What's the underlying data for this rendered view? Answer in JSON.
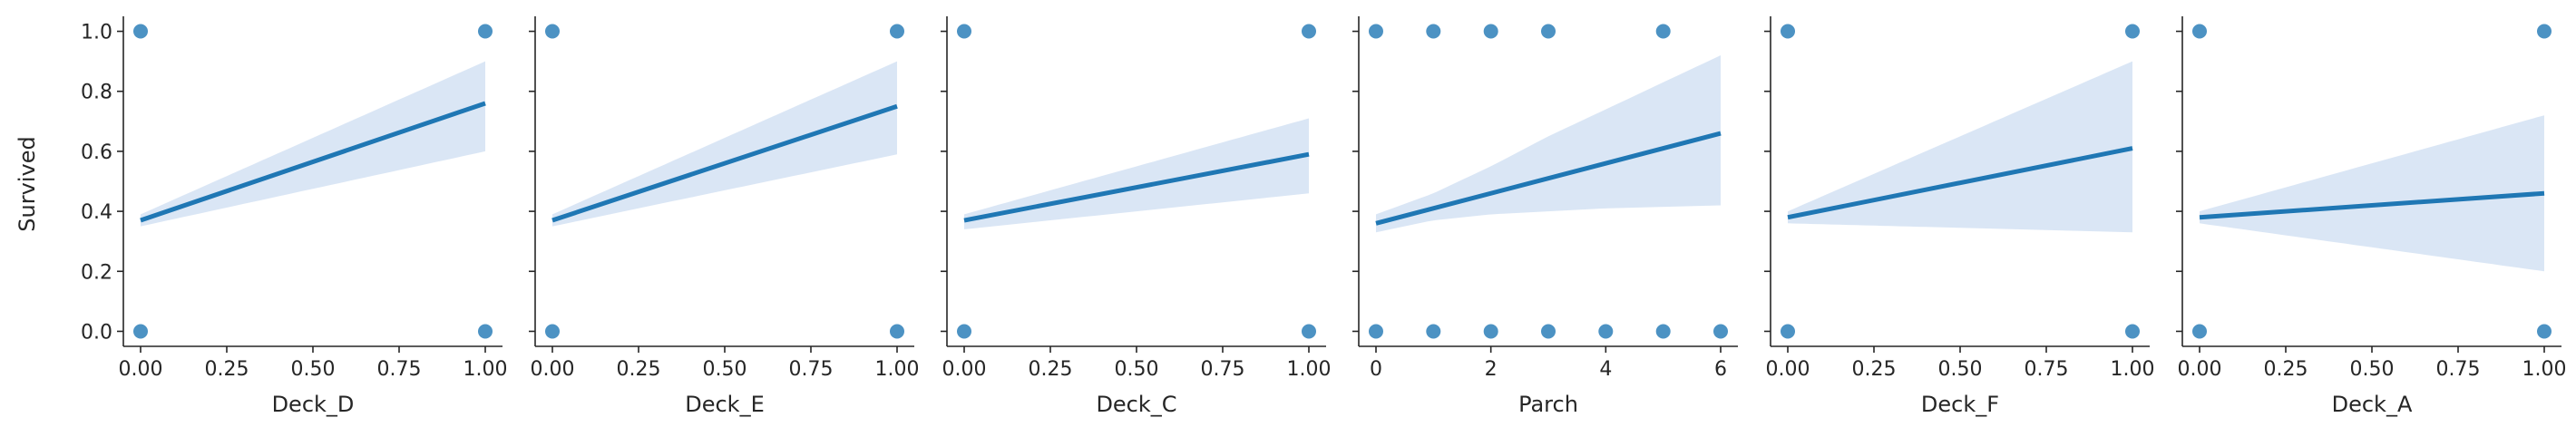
{
  "figure": {
    "shared_ylabel": "Survived",
    "y_ticks": [
      0.0,
      0.2,
      0.4,
      0.6,
      0.8,
      1.0
    ],
    "y_tick_labels": [
      "0.0",
      "0.2",
      "0.4",
      "0.6",
      "0.8",
      "1.0"
    ],
    "ylim": [
      -0.05,
      1.05
    ],
    "colors": {
      "points": "#1f77b4",
      "line": "#1f77b4",
      "ci_band": "#aec7e8",
      "axis": "#262626"
    }
  },
  "chart_data": [
    {
      "type": "scatter",
      "xlabel": "Deck_D",
      "ylabel": "Survived",
      "xlim": [
        -0.05,
        1.05
      ],
      "x_ticks": [
        0.0,
        0.25,
        0.5,
        0.75,
        1.0
      ],
      "x_tick_labels": [
        "0.00",
        "0.25",
        "0.50",
        "0.75",
        "1.00"
      ],
      "points": [
        [
          0,
          0
        ],
        [
          0,
          1
        ],
        [
          1,
          0
        ],
        [
          1,
          1
        ]
      ],
      "regression_line": [
        [
          0,
          0.37
        ],
        [
          1,
          0.76
        ]
      ],
      "ci_upper": [
        [
          0,
          0.39
        ],
        [
          1,
          0.9
        ]
      ],
      "ci_lower": [
        [
          0,
          0.35
        ],
        [
          1,
          0.6
        ]
      ]
    },
    {
      "type": "scatter",
      "xlabel": "Deck_E",
      "ylabel": "",
      "xlim": [
        -0.05,
        1.05
      ],
      "x_ticks": [
        0.0,
        0.25,
        0.5,
        0.75,
        1.0
      ],
      "x_tick_labels": [
        "0.00",
        "0.25",
        "0.50",
        "0.75",
        "1.00"
      ],
      "points": [
        [
          0,
          0
        ],
        [
          0,
          1
        ],
        [
          1,
          0
        ],
        [
          1,
          1
        ]
      ],
      "regression_line": [
        [
          0,
          0.37
        ],
        [
          1,
          0.75
        ]
      ],
      "ci_upper": [
        [
          0,
          0.39
        ],
        [
          1,
          0.9
        ]
      ],
      "ci_lower": [
        [
          0,
          0.35
        ],
        [
          1,
          0.59
        ]
      ]
    },
    {
      "type": "scatter",
      "xlabel": "Deck_C",
      "ylabel": "",
      "xlim": [
        -0.05,
        1.05
      ],
      "x_ticks": [
        0.0,
        0.25,
        0.5,
        0.75,
        1.0
      ],
      "x_tick_labels": [
        "0.00",
        "0.25",
        "0.50",
        "0.75",
        "1.00"
      ],
      "points": [
        [
          0,
          0
        ],
        [
          0,
          1
        ],
        [
          1,
          0
        ],
        [
          1,
          1
        ]
      ],
      "regression_line": [
        [
          0,
          0.37
        ],
        [
          1,
          0.59
        ]
      ],
      "ci_upper": [
        [
          0,
          0.39
        ],
        [
          1,
          0.71
        ]
      ],
      "ci_lower": [
        [
          0,
          0.34
        ],
        [
          1,
          0.46
        ]
      ]
    },
    {
      "type": "scatter",
      "xlabel": "Parch",
      "ylabel": "",
      "xlim": [
        -0.3,
        6.3
      ],
      "x_ticks": [
        0,
        2,
        4,
        6
      ],
      "x_tick_labels": [
        "0",
        "2",
        "4",
        "6"
      ],
      "points": [
        [
          0,
          0
        ],
        [
          0,
          1
        ],
        [
          1,
          0
        ],
        [
          1,
          1
        ],
        [
          2,
          0
        ],
        [
          2,
          1
        ],
        [
          3,
          0
        ],
        [
          3,
          1
        ],
        [
          4,
          0
        ],
        [
          5,
          0
        ],
        [
          5,
          1
        ],
        [
          6,
          0
        ]
      ],
      "regression_line": [
        [
          0,
          0.36
        ],
        [
          6,
          0.66
        ]
      ],
      "ci_upper": [
        [
          0,
          0.39
        ],
        [
          1,
          0.46
        ],
        [
          2,
          0.55
        ],
        [
          3,
          0.65
        ],
        [
          4,
          0.74
        ],
        [
          5,
          0.83
        ],
        [
          6,
          0.92
        ]
      ],
      "ci_lower": [
        [
          0,
          0.33
        ],
        [
          1,
          0.37
        ],
        [
          2,
          0.39
        ],
        [
          3,
          0.4
        ],
        [
          4,
          0.41
        ],
        [
          5,
          0.415
        ],
        [
          6,
          0.42
        ]
      ]
    },
    {
      "type": "scatter",
      "xlabel": "Deck_F",
      "ylabel": "",
      "xlim": [
        -0.05,
        1.05
      ],
      "x_ticks": [
        0.0,
        0.25,
        0.5,
        0.75,
        1.0
      ],
      "x_tick_labels": [
        "0.00",
        "0.25",
        "0.50",
        "0.75",
        "1.00"
      ],
      "points": [
        [
          0,
          0
        ],
        [
          0,
          1
        ],
        [
          1,
          0
        ],
        [
          1,
          1
        ]
      ],
      "regression_line": [
        [
          0,
          0.38
        ],
        [
          1,
          0.61
        ]
      ],
      "ci_upper": [
        [
          0,
          0.4
        ],
        [
          1,
          0.9
        ]
      ],
      "ci_lower": [
        [
          0,
          0.36
        ],
        [
          1,
          0.33
        ]
      ]
    },
    {
      "type": "scatter",
      "xlabel": "Deck_A",
      "ylabel": "",
      "xlim": [
        -0.05,
        1.05
      ],
      "x_ticks": [
        0.0,
        0.25,
        0.5,
        0.75,
        1.0
      ],
      "x_tick_labels": [
        "0.00",
        "0.25",
        "0.50",
        "0.75",
        "1.00"
      ],
      "points": [
        [
          0,
          0
        ],
        [
          0,
          1
        ],
        [
          1,
          0
        ],
        [
          1,
          1
        ]
      ],
      "regression_line": [
        [
          0,
          0.38
        ],
        [
          1,
          0.46
        ]
      ],
      "ci_upper": [
        [
          0,
          0.4
        ],
        [
          1,
          0.72
        ]
      ],
      "ci_lower": [
        [
          0,
          0.36
        ],
        [
          1,
          0.2
        ]
      ]
    }
  ]
}
